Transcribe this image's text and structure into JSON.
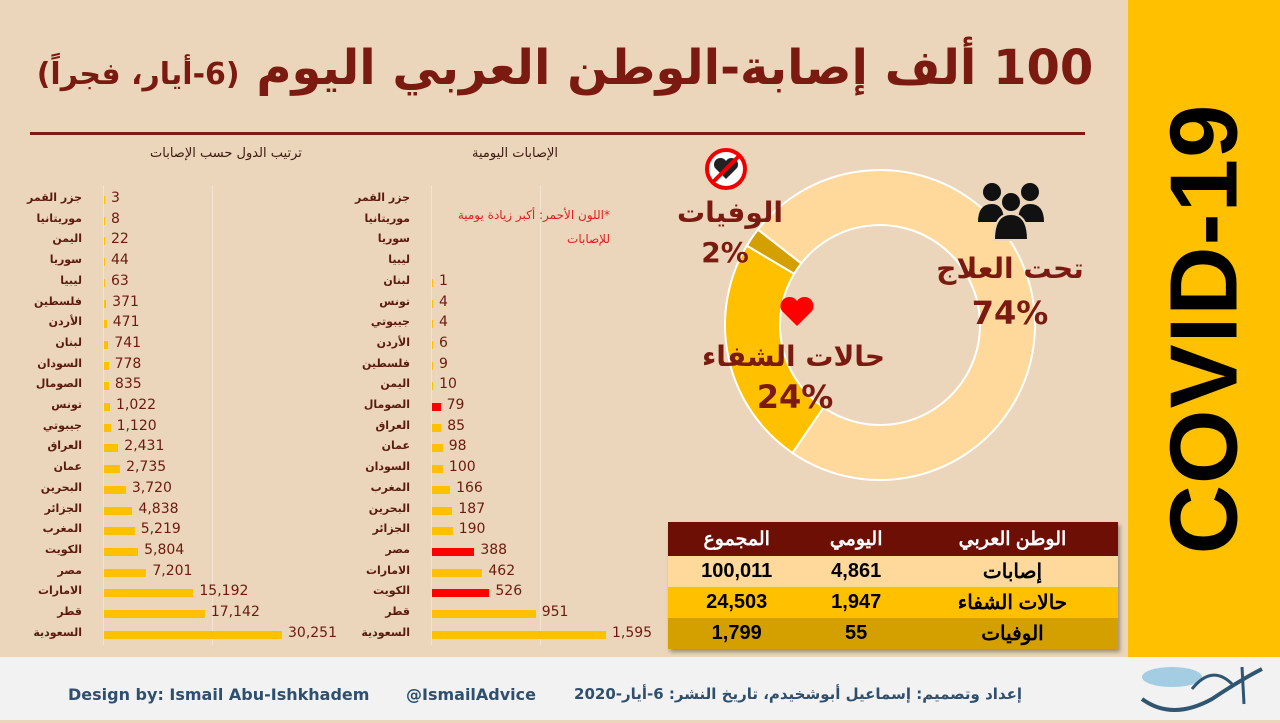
{
  "title": {
    "main": "100 ألف إصابة-الوطن العربي اليوم",
    "date": "(6-أيار، فجراً)"
  },
  "side_label": "COVID-19",
  "colors": {
    "accent": "#7b1a10",
    "bar": "#ffc000",
    "highlight": "#ff0000",
    "background": "#ecd6bb"
  },
  "total_chart": {
    "title": "ترتيب الدول حسب الإصابات",
    "type": "bar",
    "categories": [
      "جزر القمر",
      "موريتانيا",
      "اليمن",
      "سوريا",
      "ليبيا",
      "فلسطين",
      "الأردن",
      "لبنان",
      "السودان",
      "الصومال",
      "تونس",
      "جيبوتي",
      "العراق",
      "عمان",
      "البحرين",
      "الجزائر",
      "المغرب",
      "الكويت",
      "مصر",
      "الامارات",
      "قطر",
      "السعودية"
    ],
    "values": [
      3,
      8,
      22,
      44,
      63,
      371,
      471,
      741,
      778,
      835,
      1022,
      1120,
      2431,
      2735,
      3720,
      4838,
      5219,
      5804,
      7201,
      15192,
      17142,
      30251
    ],
    "labels": [
      "3",
      "8",
      "22",
      "44",
      "63",
      "371",
      "471",
      "741",
      "778",
      "835",
      "1,022",
      "1,120",
      "2,431",
      "2,735",
      "3,720",
      "4,838",
      "5,219",
      "5,804",
      "7,201",
      "15,192",
      "17,142",
      "30,251"
    ]
  },
  "daily_chart": {
    "title": "الإصابات اليومية",
    "type": "bar",
    "note": "*اللون الأحمر: أكبر زيادة يومية للإصابات",
    "categories": [
      "جزر القمر",
      "موريتانيا",
      "سوريا",
      "ليبيا",
      "لبنان",
      "تونس",
      "جيبوتي",
      "الأردن",
      "فلسطين",
      "اليمن",
      "الصومال",
      "العراق",
      "عمان",
      "السودان",
      "المغرب",
      "البحرين",
      "الجزائر",
      "مصر",
      "الامارات",
      "الكويت",
      "قطر",
      "السعودية"
    ],
    "values": [
      null,
      null,
      null,
      null,
      1,
      4,
      4,
      6,
      9,
      10,
      79,
      85,
      98,
      100,
      166,
      187,
      190,
      388,
      462,
      526,
      951,
      1595
    ],
    "labels": [
      "",
      "",
      "",
      "",
      "1",
      "4",
      "4",
      "6",
      "9",
      "10",
      "79",
      "85",
      "98",
      "100",
      "166",
      "187",
      "190",
      "388",
      "462",
      "526",
      "951",
      "1,595"
    ],
    "highlight": [
      false,
      false,
      false,
      false,
      false,
      false,
      false,
      false,
      false,
      false,
      true,
      false,
      false,
      false,
      false,
      false,
      false,
      true,
      false,
      true,
      false,
      false
    ]
  },
  "donut": {
    "type": "pie",
    "slices": [
      {
        "label": "تحت العلاج",
        "value": 74,
        "text": "74%",
        "color": "#ffd99c",
        "icon": "people-icon"
      },
      {
        "label": "حالات الشفاء",
        "value": 24,
        "text": "24%",
        "color": "#ffc000",
        "icon": "heart-icon"
      },
      {
        "label": "الوفيات",
        "value": 2,
        "text": "2%",
        "color": "#d4a000",
        "icon": "no-heart-icon"
      }
    ]
  },
  "summary": {
    "headers": [
      "المجموع",
      "اليومي",
      "الوطن العربي"
    ],
    "rows": [
      {
        "label": "إصابات",
        "daily": "4,861",
        "total": "100,011",
        "color": "#ffd99c"
      },
      {
        "label": "حالات الشفاء",
        "daily": "1,947",
        "total": "24,503",
        "color": "#ffc000"
      },
      {
        "label": "الوفيات",
        "daily": "55",
        "total": "1,799",
        "color": "#d4a000"
      }
    ]
  },
  "footer": {
    "credit": "Design by: Ismail Abu-Ishkhadem",
    "handle": "@IsmailAdvice",
    "arabic": "إعداد وتصميم: إسماعيل أبوشخيدم، تاريخ النشر: 6-أيار-2020",
    "logo": "أحداث اليوم"
  }
}
